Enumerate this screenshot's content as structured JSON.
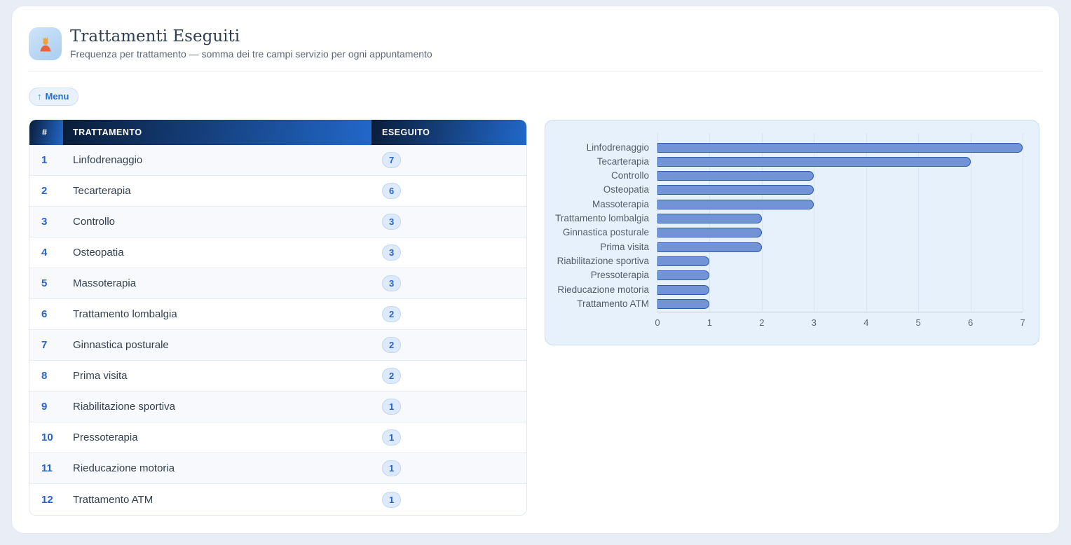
{
  "header": {
    "title": "Trattamenti Eseguiti",
    "subtitle": "Frequenza per trattamento — somma dei tre campi servizio per ogni appuntamento",
    "icon": "person-getting-massage-icon"
  },
  "toolbar": {
    "menu_arrow": "↑",
    "menu_label": "Menu"
  },
  "table": {
    "columns": [
      "#",
      "TRATTAMENTO",
      "ESEGUITO"
    ],
    "rows": [
      {
        "rank": "1",
        "trattamento": "Linfodrenaggio",
        "eseguito": "7"
      },
      {
        "rank": "2",
        "trattamento": "Tecarterapia",
        "eseguito": "6"
      },
      {
        "rank": "3",
        "trattamento": "Controllo",
        "eseguito": "3"
      },
      {
        "rank": "4",
        "trattamento": "Osteopatia",
        "eseguito": "3"
      },
      {
        "rank": "5",
        "trattamento": "Massoterapia",
        "eseguito": "3"
      },
      {
        "rank": "6",
        "trattamento": "Trattamento lombalgia",
        "eseguito": "2"
      },
      {
        "rank": "7",
        "trattamento": "Ginnastica posturale",
        "eseguito": "2"
      },
      {
        "rank": "8",
        "trattamento": "Prima visita",
        "eseguito": "2"
      },
      {
        "rank": "9",
        "trattamento": "Riabilitazione sportiva",
        "eseguito": "1"
      },
      {
        "rank": "10",
        "trattamento": "Pressoterapia",
        "eseguito": "1"
      },
      {
        "rank": "11",
        "trattamento": "Rieducazione motoria",
        "eseguito": "1"
      },
      {
        "rank": "12",
        "trattamento": "Trattamento ATM",
        "eseguito": "1"
      }
    ]
  },
  "chart_data": {
    "type": "bar",
    "orientation": "horizontal",
    "title": "",
    "categories": [
      "Linfodrenaggio",
      "Tecarterapia",
      "Controllo",
      "Osteopatia",
      "Massoterapia",
      "Trattamento lombalgia",
      "Ginnastica posturale",
      "Prima visita",
      "Riabilitazione sportiva",
      "Pressoterapia",
      "Rieducazione motoria",
      "Trattamento ATM"
    ],
    "values": [
      7,
      6,
      3,
      3,
      3,
      2,
      2,
      2,
      1,
      1,
      1,
      1
    ],
    "xlabel": "",
    "ylabel": "",
    "xlim": [
      0,
      7
    ],
    "xticks": [
      0,
      1,
      2,
      3,
      4,
      5,
      6,
      7
    ],
    "grid": true,
    "legend": false,
    "bar_fill": "#7294d6",
    "bar_border": "#2e5ca9"
  },
  "colors": {
    "page_background": "#e9edf6",
    "card_background": "#ffffff",
    "header_gradient_start": "#0a1d3a",
    "header_gradient_end": "#2268ca",
    "accent_blue": "#2b63c8",
    "badge_background": "#dceafb",
    "chart_panel_background": "#e7f1fc"
  }
}
